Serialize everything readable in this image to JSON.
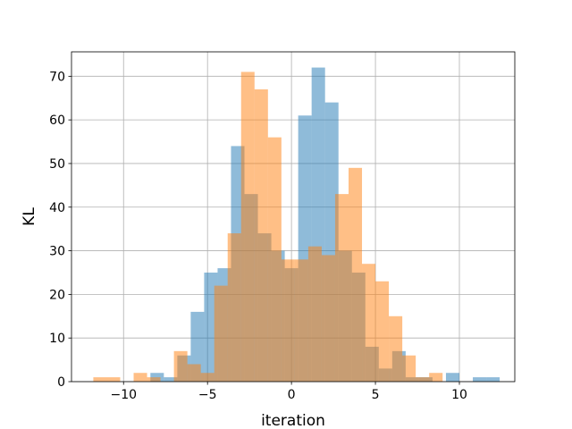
{
  "chart_data": {
    "type": "bar",
    "xlabel": "iteration",
    "ylabel": "KL",
    "xlim": [
      -13.1,
      13.3
    ],
    "ylim": [
      0,
      75.6
    ],
    "grid": true,
    "legend": "none",
    "xticks": [
      -10,
      -5,
      0,
      5,
      10
    ],
    "xtick_labels": [
      "−10",
      "−5",
      "0",
      "5",
      "10"
    ],
    "yticks": [
      0,
      10,
      20,
      30,
      40,
      50,
      60,
      70
    ],
    "ytick_labels": [
      "0",
      "10",
      "20",
      "30",
      "40",
      "50",
      "60",
      "70"
    ],
    "series": [
      {
        "color": "#1f77b4",
        "opacity": 0.5,
        "bins": [
          [
            -8.4,
            -7.6,
            2
          ],
          [
            -7.6,
            -6.8,
            1
          ],
          [
            -6.8,
            -6.0,
            6
          ],
          [
            -6.0,
            -5.2,
            16
          ],
          [
            -5.2,
            -4.4,
            25
          ],
          [
            -4.4,
            -3.6,
            26
          ],
          [
            -3.6,
            -2.8,
            54
          ],
          [
            -2.8,
            -2.0,
            43
          ],
          [
            -2.0,
            -1.2,
            34
          ],
          [
            -1.2,
            -0.4,
            30
          ],
          [
            -0.4,
            0.4,
            26
          ],
          [
            0.4,
            1.2,
            61
          ],
          [
            1.2,
            2.0,
            72
          ],
          [
            2.0,
            2.8,
            64
          ],
          [
            2.8,
            3.6,
            30
          ],
          [
            3.6,
            4.4,
            25
          ],
          [
            4.4,
            5.2,
            8
          ],
          [
            5.2,
            6.0,
            3
          ],
          [
            6.0,
            6.8,
            7
          ],
          [
            6.8,
            7.6,
            1
          ],
          [
            7.6,
            8.4,
            1
          ],
          [
            8.4,
            9.2,
            0
          ],
          [
            9.2,
            10.0,
            2
          ],
          [
            10.0,
            10.8,
            0
          ],
          [
            10.8,
            11.6,
            1
          ],
          [
            11.6,
            12.4,
            1
          ]
        ]
      },
      {
        "color": "#ff7f0e",
        "opacity": 0.5,
        "bins": [
          [
            -11.8,
            -10.2,
            1
          ],
          [
            -10.2,
            -9.4,
            0
          ],
          [
            -9.4,
            -8.6,
            2
          ],
          [
            -8.6,
            -7.8,
            1
          ],
          [
            -7.8,
            -7.0,
            0
          ],
          [
            -7.0,
            -6.2,
            7
          ],
          [
            -6.2,
            -5.4,
            4
          ],
          [
            -5.4,
            -4.6,
            2
          ],
          [
            -4.6,
            -3.8,
            22
          ],
          [
            -3.8,
            -3.0,
            34
          ],
          [
            -3.0,
            -2.2,
            71
          ],
          [
            -2.2,
            -1.4,
            67
          ],
          [
            -1.4,
            -0.6,
            56
          ],
          [
            -0.6,
            0.2,
            28
          ],
          [
            0.2,
            1.0,
            28
          ],
          [
            1.0,
            1.8,
            31
          ],
          [
            1.8,
            2.6,
            29
          ],
          [
            2.6,
            3.4,
            43
          ],
          [
            3.4,
            4.2,
            49
          ],
          [
            4.2,
            5.0,
            27
          ],
          [
            5.0,
            5.8,
            23
          ],
          [
            5.8,
            6.6,
            15
          ],
          [
            6.6,
            7.4,
            6
          ],
          [
            7.4,
            8.2,
            1
          ],
          [
            8.2,
            9.0,
            2
          ]
        ]
      }
    ]
  }
}
